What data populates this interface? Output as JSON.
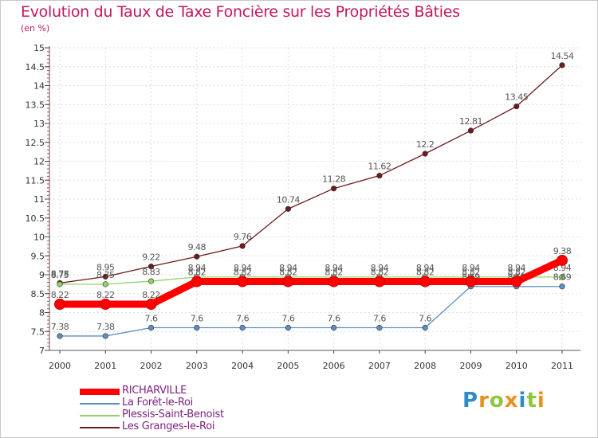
{
  "header": {
    "title": "Evolution du Taux de Taxe Foncière sur les Propriétés Bâties",
    "unit": "(en %)"
  },
  "brand": {
    "letters": [
      "P",
      "r",
      "o",
      "x",
      "i",
      "t",
      "i"
    ],
    "colors": [
      "#2e8bc9",
      "#e8911c",
      "#8dc63f",
      "#e8911c",
      "#2e8bc9",
      "#8dc63f",
      "#e8911c"
    ]
  },
  "chart_data": {
    "type": "line",
    "title": "Evolution du Taux de Taxe Foncière sur les Propriétés Bâties",
    "ylabel": "(en %)",
    "xlabel": "",
    "categories": [
      "2000",
      "2001",
      "2002",
      "2003",
      "2004",
      "2005",
      "2006",
      "2007",
      "2008",
      "2009",
      "2010",
      "2011"
    ],
    "ylim": [
      7,
      15
    ],
    "yticks": [
      "7",
      "7.5",
      "8",
      "8.5",
      "9",
      "9.5",
      "10",
      "10.5",
      "11",
      "11.5",
      "12",
      "12.5",
      "13",
      "13.5",
      "14",
      "14.5",
      "15"
    ],
    "legend_position": "bottom-left",
    "series": [
      {
        "name": "Les Granges-le-Roi",
        "color": "#6e1a1e",
        "values": [
          8.78,
          8.95,
          9.22,
          9.48,
          9.76,
          10.74,
          11.28,
          11.62,
          12.2,
          12.81,
          13.45,
          14.54
        ],
        "labels": [
          "8.78",
          "8.95",
          "9.22",
          "9.48",
          "9.76",
          "10.74",
          "11.28",
          "11.62",
          "12.2",
          "12.81",
          "13.45",
          "14.54"
        ]
      },
      {
        "name": "Plessis-Saint-Benoist",
        "color": "#8fd464",
        "values": [
          8.75,
          8.75,
          8.83,
          8.94,
          8.94,
          8.94,
          8.94,
          8.94,
          8.94,
          8.94,
          8.94,
          8.94
        ],
        "labels": [
          "8.75",
          "8.75",
          "8.83",
          "8.94",
          "8.94",
          "8.94",
          "8.94",
          "8.94",
          "8.94",
          "8.94",
          "8.94",
          "8.94"
        ]
      },
      {
        "name": "La Forêt-le-Roi",
        "color": "#5b8fbf",
        "values": [
          7.38,
          7.38,
          7.6,
          7.6,
          7.6,
          7.6,
          7.6,
          7.6,
          7.6,
          8.69,
          8.69,
          8.69
        ],
        "labels": [
          "7.38",
          "7.38",
          "7.6",
          "7.6",
          "7.6",
          "7.6",
          "7.6",
          "7.6",
          "7.6",
          "8.69",
          "8.69",
          "8.69"
        ]
      },
      {
        "name": "RICHARVILLE",
        "color": "#ff0000",
        "values": [
          8.22,
          8.22,
          8.22,
          8.82,
          8.82,
          8.82,
          8.82,
          8.82,
          8.82,
          8.82,
          8.82,
          9.38
        ],
        "labels": [
          "8.22",
          "8.22",
          "8.22",
          "8.82",
          "8.82",
          "8.82",
          "8.82",
          "8.82",
          "8.82",
          "8.82",
          "8.82",
          "9.38"
        ]
      }
    ],
    "legend_order": [
      "RICHARVILLE",
      "La Forêt-le-Roi",
      "Plessis-Saint-Benoist",
      "Les Granges-le-Roi"
    ]
  }
}
